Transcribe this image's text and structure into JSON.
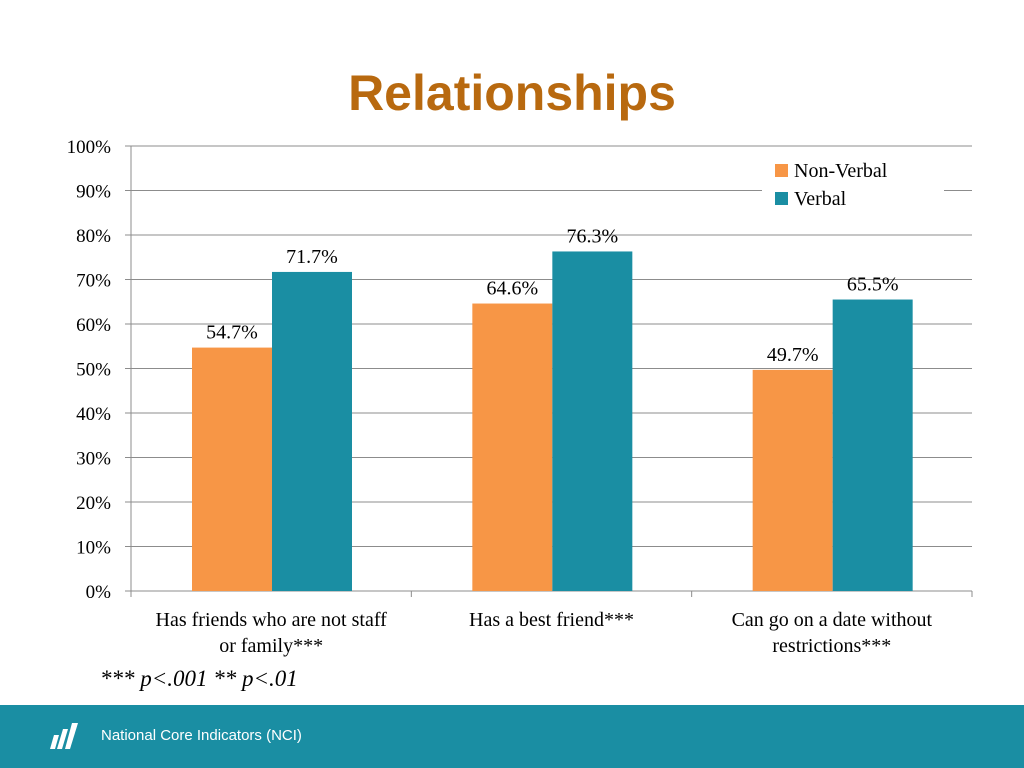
{
  "slide": {
    "title": "Relationships",
    "footnote": "*** p<.001 ** p<.01",
    "footer_text": "National Core Indicators (NCI)",
    "footer_logo_icon": "nci-logo-icon"
  },
  "colors": {
    "title": "#b8690f",
    "footer_bg": "#1a8ea3",
    "non_verbal": "#f79646",
    "verbal": "#1a8ea3",
    "grid": "#8c8c8c"
  },
  "chart_data": {
    "type": "bar",
    "title": "",
    "xlabel": "",
    "ylabel": "",
    "ylim": [
      0,
      100
    ],
    "ytick_step": 10,
    "ytick_suffix": "%",
    "grid": true,
    "legend_position": "top-right",
    "categories": [
      [
        "Has friends who are not staff",
        "or family***"
      ],
      [
        "Has a best friend***"
      ],
      [
        "Can go on a date without",
        "restrictions***"
      ]
    ],
    "series": [
      {
        "name": "Non-Verbal",
        "color": "#f79646",
        "values": [
          54.7,
          64.6,
          49.7
        ],
        "labels": [
          "54.7%",
          "64.6%",
          "49.7%"
        ]
      },
      {
        "name": "Verbal",
        "color": "#1a8ea3",
        "values": [
          71.7,
          76.3,
          65.5
        ],
        "labels": [
          "71.7%",
          "76.3%",
          "65.5%"
        ]
      }
    ]
  }
}
